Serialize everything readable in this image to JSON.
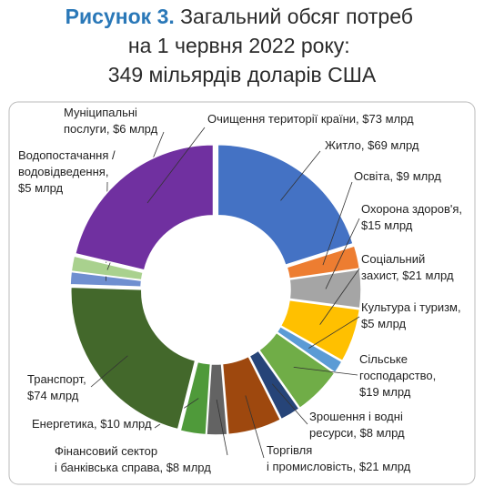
{
  "chart_data": {
    "type": "donut",
    "title_prefix": "Рисунок 3.",
    "title_lines": [
      "Загальний обсяг потреб",
      "на 1 червня 2022 року:",
      "349 мільярдів доларів США"
    ],
    "values": [
      69,
      9,
      15,
      21,
      5,
      19,
      8,
      21,
      8,
      10,
      74,
      5,
      6,
      73
    ],
    "value_labels": [
      [
        "Житло, $69 млрд"
      ],
      [
        "Освіта, $9 млрд"
      ],
      [
        "Охорона здоров'я,",
        "$15 млрд"
      ],
      [
        "Соціальний",
        "захист, $21 млрд"
      ],
      [
        "Культура і туризм,",
        "$5 млрд"
      ],
      [
        "Сільське",
        "господарство,",
        "$19 млрд"
      ],
      [
        "Зрошення і водні",
        "ресурси, $8 млрд"
      ],
      [
        "Торгівля",
        "і промисловість, $21 млрд"
      ],
      [
        "Фінансовий сектор",
        "і банківська справа, $8 млрд"
      ],
      [
        "Енергетика, $10 млрд"
      ],
      [
        "Транспорт,",
        "$74 млрд"
      ],
      [
        "Водопостачання /",
        "водовідведення,",
        "$5 млрд"
      ],
      [
        "Муніципальні",
        "послуги, $6 млрд"
      ],
      [
        "Очищення території країни, $73 млрд"
      ]
    ],
    "colors": [
      "#4472c4",
      "#ed7d31",
      "#a5a5a5",
      "#ffc000",
      "#5b9bd5",
      "#70ad47",
      "#264478",
      "#9e480e",
      "#636363",
      "#4f9a3a",
      "#43682b",
      "#6f8fd0",
      "#a9d18e",
      "#7030a0"
    ]
  }
}
